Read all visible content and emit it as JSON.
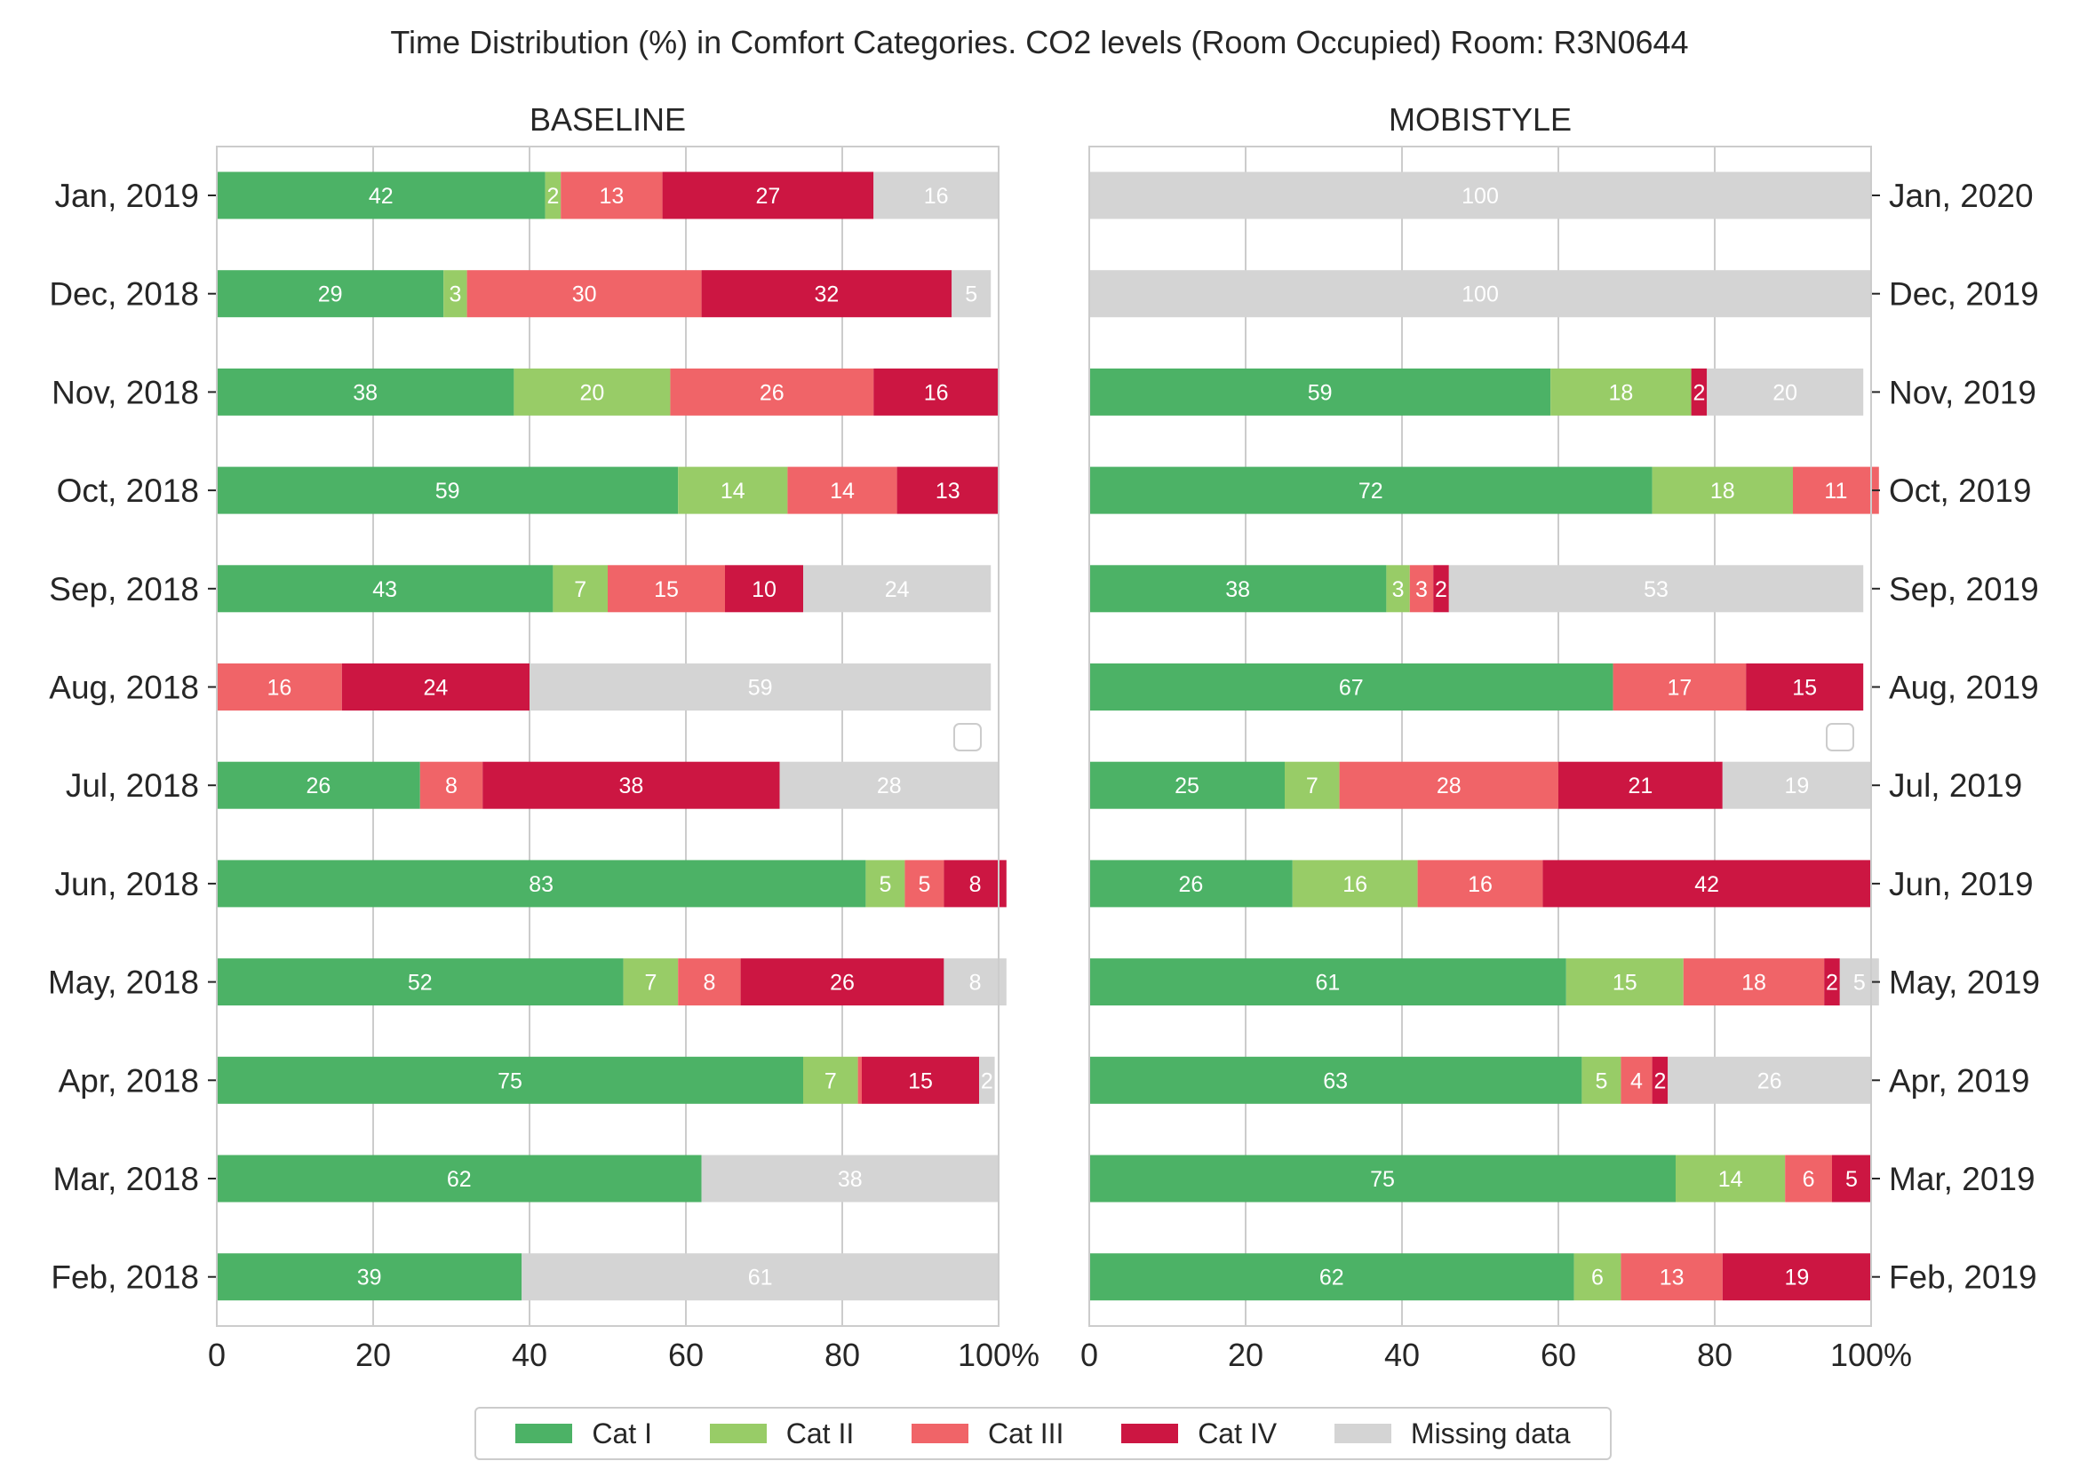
{
  "title": "Time Distribution (%) in Comfort Categories. CO2 levels (Room Occupied) Room: R3N0644",
  "legend": {
    "entries": [
      {
        "label": "Cat I",
        "color": "#4cb266"
      },
      {
        "label": "Cat II",
        "color": "#98cc67"
      },
      {
        "label": "Cat III",
        "color": "#f06468"
      },
      {
        "label": "Cat IV",
        "color": "#cc1642"
      },
      {
        "label": "Missing data",
        "color": "#d4d4d4"
      }
    ]
  },
  "chart_data": [
    {
      "type": "bar",
      "orientation": "horizontal",
      "stacked": true,
      "title": "BASELINE",
      "xlim": [
        0,
        100
      ],
      "xticks": [
        "0",
        "20",
        "40",
        "60",
        "80",
        "100%"
      ],
      "grid": true,
      "categories": [
        "Jan, 2019",
        "Dec, 2018",
        "Nov, 2018",
        "Oct, 2018",
        "Sep, 2018",
        "Aug, 2018",
        "Jul, 2018",
        "Jun, 2018",
        "May, 2018",
        "Apr, 2018",
        "Mar, 2018",
        "Feb, 2018"
      ],
      "series": [
        {
          "name": "Cat I",
          "values": [
            42,
            29,
            38,
            59,
            43,
            0,
            26,
            83,
            52,
            75,
            62,
            39
          ]
        },
        {
          "name": "Cat II",
          "values": [
            2,
            3,
            20,
            14,
            7,
            0,
            0,
            5,
            7,
            7,
            0,
            0
          ]
        },
        {
          "name": "Cat III",
          "values": [
            13,
            30,
            26,
            14,
            15,
            16,
            8,
            5,
            8,
            0.5,
            0,
            0
          ]
        },
        {
          "name": "Cat IV",
          "values": [
            27,
            32,
            16,
            13,
            10,
            24,
            38,
            8,
            26,
            15,
            0,
            0
          ]
        },
        {
          "name": "Missing data",
          "values": [
            16,
            5,
            0,
            0,
            24,
            59,
            28,
            0,
            8,
            2,
            38,
            61
          ]
        }
      ]
    },
    {
      "type": "bar",
      "orientation": "horizontal",
      "stacked": true,
      "title": "MOBISTYLE",
      "xlim": [
        0,
        100
      ],
      "xticks": [
        "0",
        "20",
        "40",
        "60",
        "80",
        "100%"
      ],
      "grid": true,
      "categories": [
        "Jan, 2020",
        "Dec, 2019",
        "Nov, 2019",
        "Oct, 2019",
        "Sep, 2019",
        "Aug, 2019",
        "Jul, 2019",
        "Jun, 2019",
        "May, 2019",
        "Apr, 2019",
        "Mar, 2019",
        "Feb, 2019"
      ],
      "series": [
        {
          "name": "Cat I",
          "values": [
            0,
            0,
            59,
            72,
            38,
            67,
            25,
            26,
            61,
            63,
            75,
            62
          ]
        },
        {
          "name": "Cat II",
          "values": [
            0,
            0,
            18,
            18,
            3,
            0,
            7,
            16,
            15,
            5,
            14,
            6
          ]
        },
        {
          "name": "Cat III",
          "values": [
            0,
            0,
            0,
            11,
            3,
            17,
            28,
            16,
            18,
            4,
            6,
            13
          ]
        },
        {
          "name": "Cat IV",
          "values": [
            0,
            0,
            2,
            0,
            2,
            15,
            21,
            42,
            2,
            2,
            5,
            19
          ]
        },
        {
          "name": "Missing data",
          "values": [
            100,
            100,
            20,
            0,
            53,
            0,
            19,
            0,
            5,
            26,
            0,
            0
          ]
        }
      ]
    }
  ]
}
